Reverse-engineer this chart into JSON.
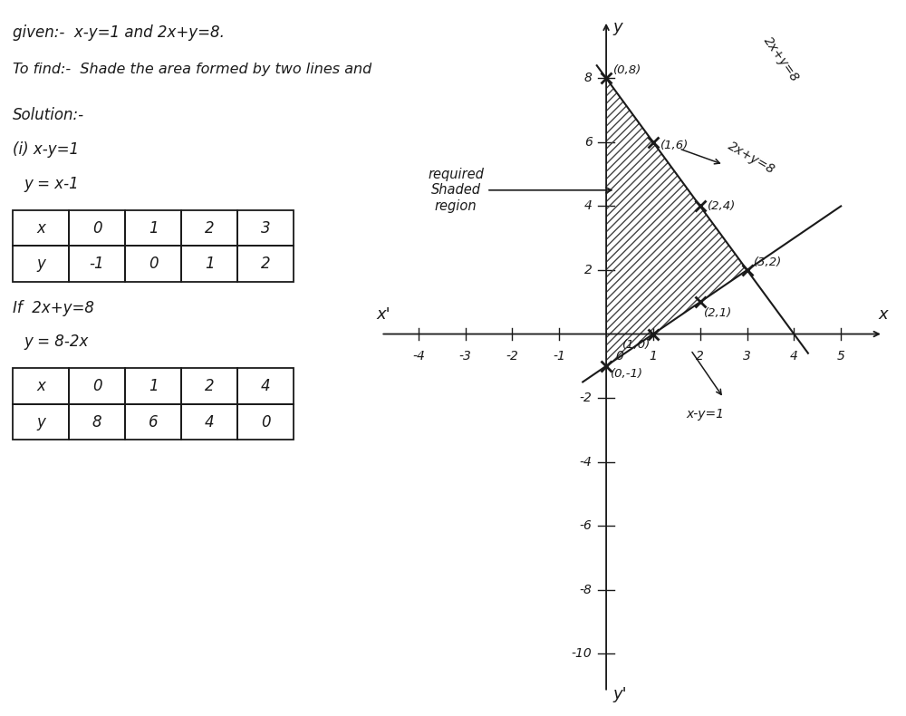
{
  "title_line1": "given:-  x-y=1 and 2x+y=8.",
  "title_line2": "To find:-  Shade the area formed by two lines and y-axis",
  "solution_label": "Solution:-",
  "eq1_label": "(i) x-y=1",
  "eq1_derived": "y = x-1",
  "eq1_table_x": [
    "0",
    "1",
    "2",
    "3"
  ],
  "eq1_table_y": [
    "-1",
    "0",
    "1",
    "2"
  ],
  "eq2_label": "If  2x+y=8",
  "eq2_derived": "y = 8-2x",
  "eq2_table_x": [
    "0",
    "1",
    "2",
    "4"
  ],
  "eq2_table_y": [
    "8",
    "6",
    "4",
    "0"
  ],
  "line1_label": "x-y=1",
  "line2_label": "2x+y=8",
  "shaded_region_label": "required\nShaded\nregion",
  "xlim": [
    -5,
    6
  ],
  "ylim": [
    -11.5,
    10
  ],
  "xticks": [
    -4,
    -3,
    -2,
    -1,
    1,
    2,
    3,
    4,
    5
  ],
  "yticks": [
    -10,
    -8,
    -6,
    -4,
    -2,
    2,
    4,
    6,
    8
  ],
  "background_color": "#ffffff",
  "text_color": "#1a1a1a",
  "line_color": "#1a1a1a",
  "shade_hatch": "////",
  "annotated_line1": [
    [
      0,
      -1
    ],
    [
      1,
      0
    ],
    [
      2,
      1
    ]
  ],
  "annotated_line2": [
    [
      0,
      8
    ],
    [
      1,
      6
    ],
    [
      2,
      4
    ],
    [
      3,
      2
    ]
  ]
}
